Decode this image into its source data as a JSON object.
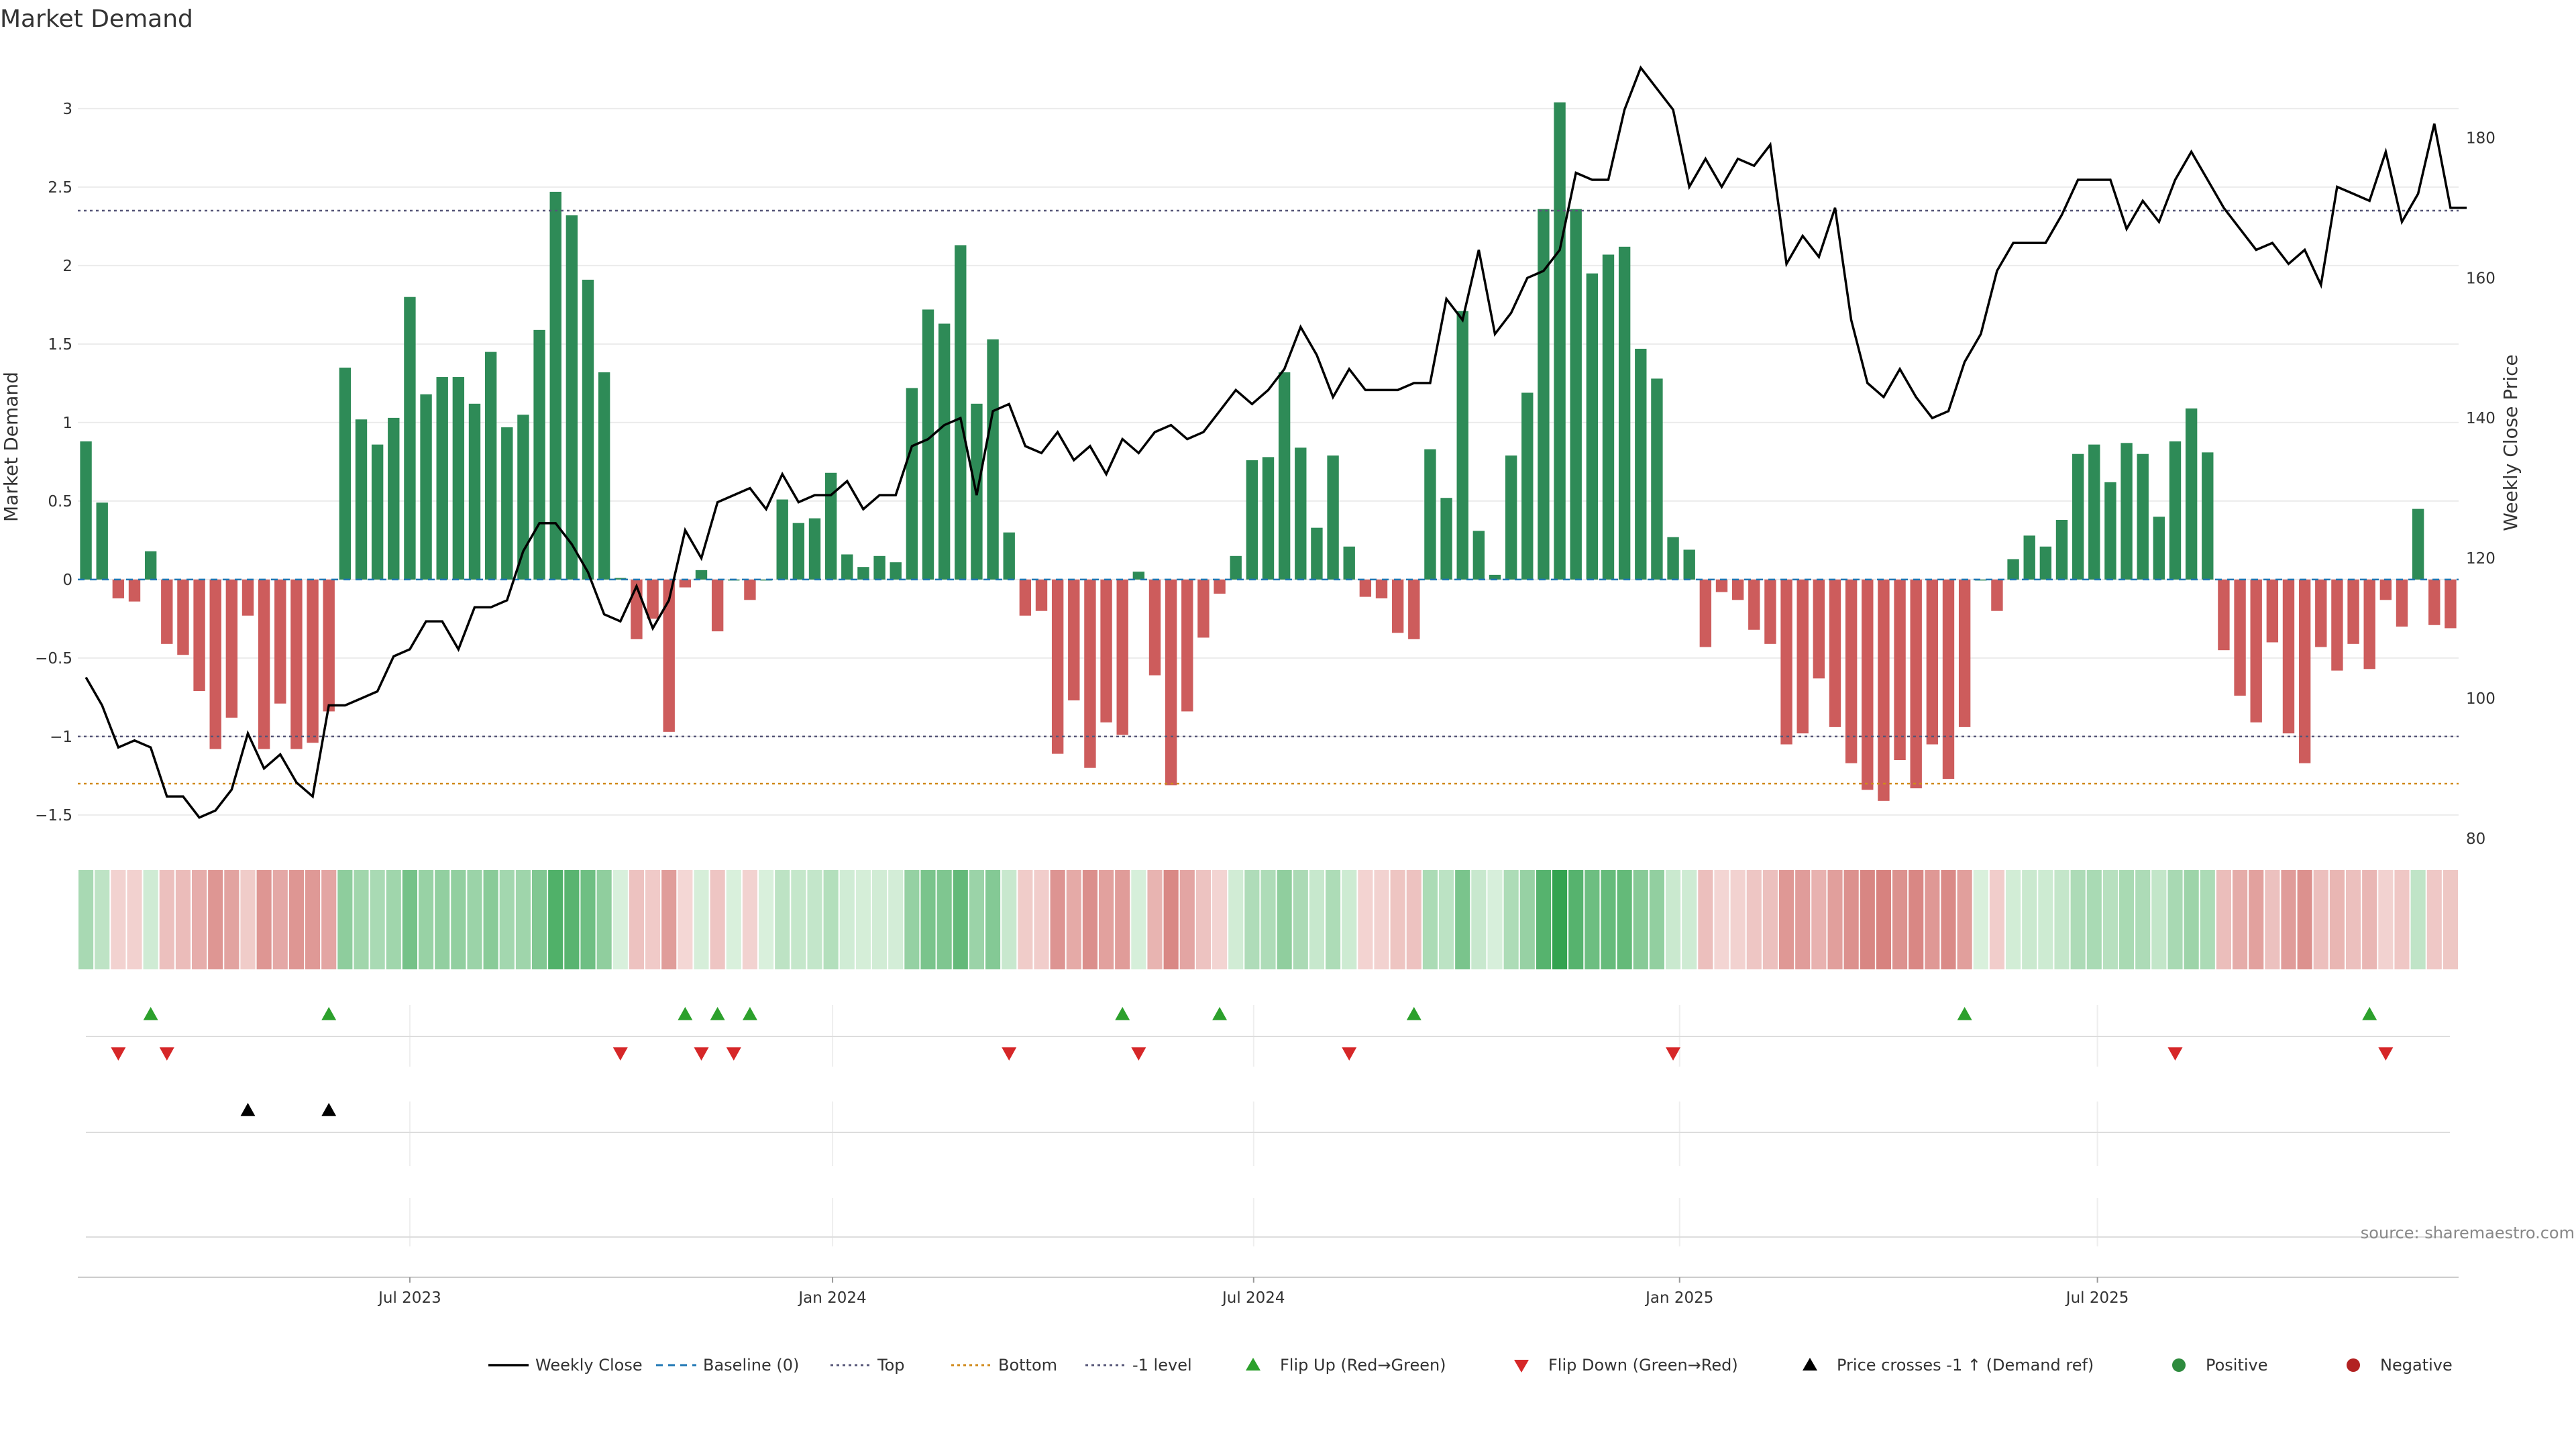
{
  "chart_data": {
    "type": "bar",
    "title": "Market Demand",
    "ylabel": "Market Demand",
    "y2label": "Weekly Close Price",
    "ylim": [
      -1.65,
      3.35
    ],
    "y2lim": [
      80,
      192
    ],
    "y_ticks": [
      3,
      2.5,
      2,
      1.5,
      1,
      0.5,
      0,
      -0.5,
      -1,
      -1.5
    ],
    "y_tick_labels": [
      "3",
      "2.5",
      "2",
      "1.5",
      "1",
      "0.5",
      "0",
      "−0.5",
      "−1",
      "−1.5"
    ],
    "y2_ticks": [
      180,
      160,
      140,
      120,
      100,
      80
    ],
    "x_tick_labels": [
      "Jul 2023",
      "Jan 2024",
      "Jul 2024",
      "Jan 2025",
      "Jul 2025"
    ],
    "x_tick_weeks": [
      20.5,
      46.6,
      72.6,
      98.9,
      124.7
    ],
    "reference_lines": {
      "top": 2.35,
      "bottom": -1.3,
      "minus_one": -1.0,
      "baseline": 0
    },
    "demand": [
      0.88,
      0.49,
      -0.12,
      -0.14,
      0.18,
      -0.41,
      -0.48,
      -0.71,
      -1.08,
      -0.88,
      -0.23,
      -1.08,
      -0.79,
      -1.08,
      -1.04,
      -0.84,
      1.35,
      1.02,
      0.86,
      1.03,
      1.8,
      1.18,
      1.29,
      1.29,
      1.12,
      1.45,
      0.97,
      1.05,
      1.59,
      2.47,
      2.32,
      1.91,
      1.32,
      0.01,
      -0.38,
      -0.25,
      -0.97,
      -0.05,
      0.06,
      -0.33,
      0.0,
      -0.13,
      0.0,
      0.51,
      0.36,
      0.39,
      0.68,
      0.16,
      0.08,
      0.15,
      0.11,
      1.22,
      1.72,
      1.63,
      2.13,
      1.12,
      1.53,
      0.3,
      -0.23,
      -0.2,
      -1.11,
      -0.77,
      -1.2,
      -0.91,
      -0.99,
      0.05,
      -0.61,
      -1.31,
      -0.84,
      -0.37,
      -0.09,
      0.15,
      0.76,
      0.78,
      1.32,
      0.84,
      0.33,
      0.79,
      0.21,
      -0.11,
      -0.12,
      -0.34,
      -0.38,
      0.83,
      0.52,
      1.71,
      0.31,
      0.03,
      0.79,
      1.19,
      2.36,
      3.04,
      2.36,
      1.95,
      2.07,
      2.12,
      1.47,
      1.28,
      0.27,
      0.19,
      -0.43,
      -0.08,
      -0.13,
      -0.32,
      -0.41,
      -1.05,
      -0.98,
      -0.63,
      -0.94,
      -1.17,
      -1.34,
      -1.41,
      -1.15,
      -1.33,
      -1.05,
      -1.27,
      -0.94,
      0.0,
      -0.2,
      0.13,
      0.28,
      0.21,
      0.38,
      0.8,
      0.86,
      0.62,
      0.87,
      0.8,
      0.4,
      0.88,
      1.09,
      0.81,
      -0.45,
      -0.74,
      -0.91,
      -0.4,
      -0.98,
      -1.17,
      -0.43,
      -0.58,
      -0.41,
      -0.57,
      -0.13,
      -0.3,
      0.45,
      -0.29,
      -0.31
    ],
    "weekly_close": [
      103,
      99,
      93,
      94,
      93,
      86,
      86,
      83,
      84,
      87,
      95,
      90,
      92,
      88,
      86,
      99,
      99,
      100,
      101,
      106,
      107,
      111,
      111,
      107,
      113,
      113,
      114,
      121,
      125,
      125,
      122,
      118,
      112,
      111,
      116,
      110,
      114,
      124,
      120,
      128,
      129,
      130,
      127,
      132,
      128,
      129,
      129,
      131,
      127,
      129,
      129,
      136,
      137,
      139,
      140,
      129,
      141,
      142,
      136,
      135,
      138,
      134,
      136,
      132,
      137,
      135,
      138,
      139,
      137,
      138,
      141,
      144,
      142,
      144,
      147,
      153,
      149,
      143,
      147,
      144,
      144,
      144,
      145,
      145,
      157,
      154,
      164,
      152,
      155,
      160,
      161,
      164,
      175,
      174,
      174,
      184,
      190,
      187,
      184,
      173,
      177,
      173,
      177,
      176,
      179,
      162,
      166,
      163,
      170,
      154,
      145,
      143,
      147,
      143,
      140,
      141,
      148,
      152,
      161,
      165,
      165,
      165,
      169,
      174,
      174,
      174,
      167,
      171,
      168,
      174,
      178,
      174,
      170,
      167,
      164,
      165,
      162,
      164,
      159,
      173,
      172,
      171,
      178,
      168,
      172,
      182,
      170,
      170
    ],
    "flip_up": [
      4,
      15,
      37,
      39,
      41,
      64,
      70,
      82,
      116,
      141
    ],
    "flip_down": [
      2,
      5,
      33,
      38,
      40,
      57,
      65,
      78,
      98,
      129,
      142
    ],
    "price_cross": [
      10,
      15
    ],
    "legend": [
      {
        "label": "Weekly Close",
        "style": "line",
        "color": "#000000"
      },
      {
        "label": "Baseline (0)",
        "style": "dash",
        "color": "#1f77b4"
      },
      {
        "label": "Top",
        "style": "dot",
        "color": "#555577"
      },
      {
        "label": "Bottom",
        "style": "dot",
        "color": "#d08a1a"
      },
      {
        "label": "-1 level",
        "style": "dot",
        "color": "#555577"
      },
      {
        "label": "Flip Up (Red→Green)",
        "style": "tri-up",
        "color": "#2ca02c"
      },
      {
        "label": "Flip Down (Green→Red)",
        "style": "tri-down",
        "color": "#d62728"
      },
      {
        "label": "Price crosses -1 ↑ (Demand ref)",
        "style": "tri-up",
        "color": "#000000"
      },
      {
        "label": "Positive",
        "style": "dot-marker",
        "color": "#2e8b3e"
      },
      {
        "label": "Negative",
        "style": "dot-marker",
        "color": "#b22222"
      }
    ],
    "colors": {
      "positive": "#2e8b57",
      "negative": "#cd5c5c",
      "price": "#000000"
    }
  },
  "source": "source: sharemaestro.com"
}
